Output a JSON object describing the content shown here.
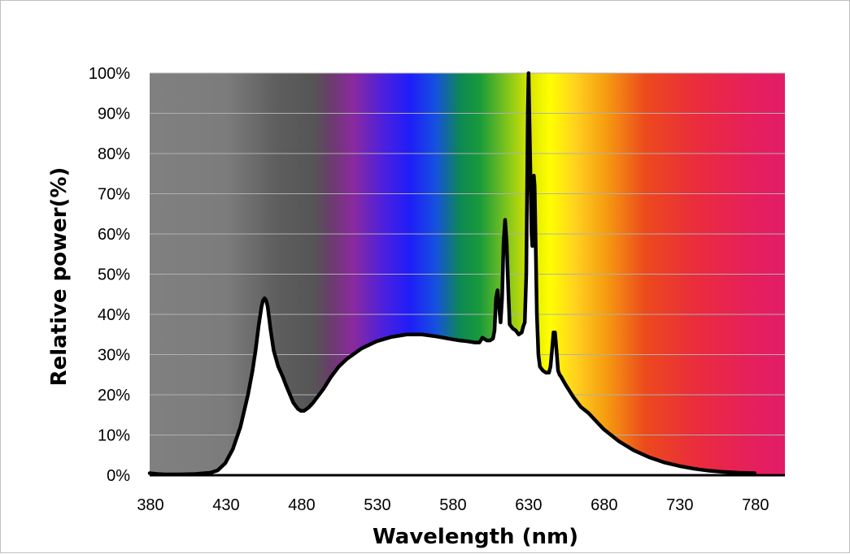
{
  "chart_data": {
    "type": "area",
    "title": "",
    "xlabel": "Wavelength (nm)",
    "ylabel": "Relative power(%)",
    "xlim": [
      380,
      800
    ],
    "ylim": [
      0,
      100
    ],
    "grid": true,
    "legend": "none",
    "x_ticks": [
      380,
      430,
      480,
      530,
      580,
      630,
      680,
      730,
      780
    ],
    "x_tick_labels": [
      "380",
      "430",
      "480",
      "530",
      "580",
      "630",
      "680",
      "730",
      "780"
    ],
    "y_ticks": [
      0,
      10,
      20,
      30,
      40,
      50,
      60,
      70,
      80,
      90,
      100
    ],
    "y_tick_labels": [
      "0%",
      "10%",
      "20%",
      "30%",
      "40%",
      "50%",
      "60%",
      "70%",
      "80%",
      "90%",
      "100%"
    ],
    "background": "visible-spectrum color gradient (grey below ~495 nm, then violet, blue, green, yellow, orange, red, magenta)",
    "series": [
      {
        "x": [
          380,
          385,
          390,
          400,
          410,
          420,
          425,
          430,
          435,
          440,
          445,
          448,
          450,
          452,
          454,
          455,
          456,
          457,
          458,
          460,
          462,
          465,
          468,
          470,
          475,
          478,
          480,
          482,
          485,
          488,
          490,
          495,
          500,
          505,
          510,
          520,
          530,
          540,
          550,
          560,
          570,
          580,
          585,
          590,
          595,
          598,
          600,
          603,
          605,
          607,
          608,
          609,
          610,
          612,
          613,
          614,
          615,
          616,
          617,
          618,
          620,
          622,
          624,
          626,
          627,
          628,
          629,
          629.5,
          630,
          630.5,
          631,
          632,
          632.5,
          633,
          633.5,
          634,
          634.5,
          635,
          636,
          637,
          638,
          640,
          642,
          644,
          645,
          646,
          647,
          648,
          649,
          650,
          651,
          652,
          655,
          660,
          665,
          670,
          680,
          690,
          700,
          710,
          720,
          730,
          740,
          750,
          760,
          770,
          780
        ],
        "values": [
          0.5,
          0.3,
          0.2,
          0.2,
          0.3,
          0.6,
          1.2,
          3.0,
          6.5,
          12.0,
          20.0,
          26.0,
          31.0,
          37.0,
          42.0,
          43.5,
          44.0,
          43.5,
          42.0,
          36.0,
          31.0,
          27.0,
          24.5,
          22.5,
          18.0,
          16.5,
          16.0,
          16.0,
          16.8,
          18.0,
          19.0,
          21.5,
          24.5,
          27.0,
          28.8,
          31.5,
          33.3,
          34.4,
          35.0,
          35.0,
          34.5,
          33.8,
          33.5,
          33.3,
          33.0,
          33.0,
          34.2,
          33.5,
          33.5,
          34.0,
          36.0,
          44.0,
          46.0,
          38.0,
          44.0,
          58.0,
          63.5,
          58.0,
          47.0,
          37.5,
          36.5,
          36.0,
          35.0,
          35.5,
          37.0,
          38.0,
          50.0,
          70.0,
          90.0,
          100.0,
          90.0,
          70.0,
          60.0,
          57.0,
          60.0,
          74.5,
          72.0,
          62.0,
          40.0,
          30.0,
          27.0,
          26.0,
          25.5,
          25.5,
          27.0,
          31.0,
          35.5,
          35.5,
          31.0,
          26.0,
          25.0,
          24.5,
          22.5,
          19.5,
          17.0,
          15.5,
          11.5,
          8.5,
          6.2,
          4.5,
          3.2,
          2.3,
          1.6,
          1.1,
          0.8,
          0.6,
          0.5
        ]
      }
    ]
  }
}
